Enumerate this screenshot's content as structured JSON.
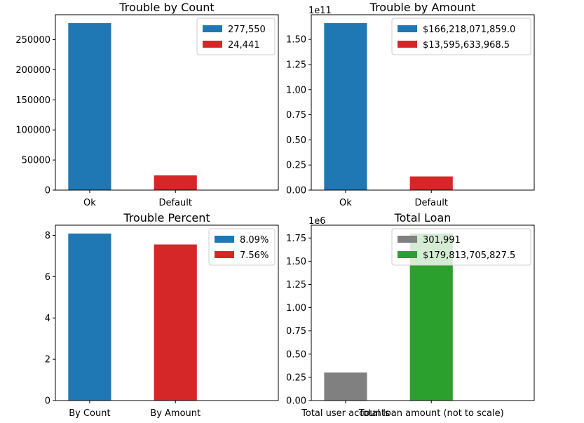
{
  "chart_data": [
    {
      "type": "bar",
      "title": "Trouble by Count",
      "categories": [
        "Ok",
        "Default"
      ],
      "values": [
        277550,
        24441
      ],
      "colors": [
        "#1f77b4",
        "#d62728"
      ],
      "ylim": [
        0,
        291427.5
      ],
      "yticks": [
        0,
        50000,
        100000,
        150000,
        200000,
        250000
      ],
      "ytick_labels": [
        "0",
        "50000",
        "100000",
        "150000",
        "200000",
        "250000"
      ],
      "offset_label": "",
      "legend": [
        "277,550",
        "24,441"
      ],
      "legend_position": "top-right"
    },
    {
      "type": "bar",
      "title": "Trouble by Amount",
      "categories": [
        "Ok",
        "Default"
      ],
      "values": [
        1.66218,
        0.135956
      ],
      "colors": [
        "#1f77b4",
        "#d62728"
      ],
      "ylim": [
        0,
        1.7453
      ],
      "yticks": [
        0,
        0.25,
        0.5,
        0.75,
        1.0,
        1.25,
        1.5
      ],
      "ytick_labels": [
        "0.00",
        "0.25",
        "0.50",
        "0.75",
        "1.00",
        "1.25",
        "1.50"
      ],
      "offset_label": "1e11",
      "legend": [
        "$166,218,071,859.0",
        "$13,595,633,968.5"
      ],
      "legend_position": "top-right"
    },
    {
      "type": "bar",
      "title": "Trouble Percent",
      "categories": [
        "By Count",
        "By Amount"
      ],
      "values": [
        8.09,
        7.56
      ],
      "colors": [
        "#1f77b4",
        "#d62728"
      ],
      "ylim": [
        0,
        8.4945
      ],
      "yticks": [
        0,
        2,
        4,
        6,
        8
      ],
      "ytick_labels": [
        "0",
        "2",
        "4",
        "6",
        "8"
      ],
      "offset_label": "",
      "legend": [
        "8.09%",
        "7.56%"
      ],
      "legend_position": "top-right"
    },
    {
      "type": "bar",
      "title": "Total Loan",
      "categories": [
        "Total user accounts",
        "Total loan amount (not to scale)"
      ],
      "values": [
        0.301991,
        1.79814
      ],
      "colors": [
        "#808080",
        "#2ca02c"
      ],
      "ylim": [
        0,
        1.888
      ],
      "yticks": [
        0,
        0.25,
        0.5,
        0.75,
        1.0,
        1.25,
        1.5,
        1.75
      ],
      "ytick_labels": [
        "0.00",
        "0.25",
        "0.50",
        "0.75",
        "1.00",
        "1.25",
        "1.50",
        "1.75"
      ],
      "offset_label": "1e6",
      "legend": [
        "301,991",
        "$179,813,705,827.5"
      ],
      "legend_position": "top-right"
    }
  ]
}
